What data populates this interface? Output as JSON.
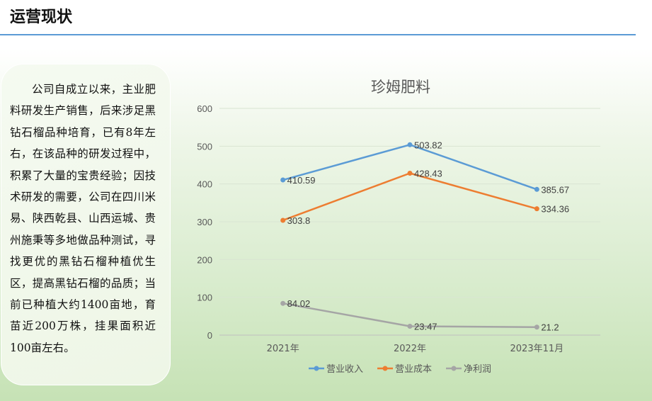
{
  "header": {
    "title": "运营现状"
  },
  "description": "公司自成立以来，主业肥料研发生产销售，后来涉足黑钻石榴品种培育，已有8年左右，在该品种的研发过程中，积累了大量的宝贵经验；因技术研发的需要，公司在四川米易、陕西乾县、山西运城、贵州施秉等多地做品种测试，寻找更优的黑钻石榴种植优生区，提高黑钻石榴的品质；当前已种植大约1400亩地，育苗近200万株，挂果面积近100亩左右。",
  "colors": {
    "accent_rule": "#5b9bd5",
    "series_1": "#5b9bd5",
    "series_2": "#ed7d31",
    "series_3": "#a5a5a5"
  },
  "chart_data": {
    "type": "line",
    "title": "珍姆肥料",
    "categories": [
      "2021年",
      "2022年",
      "2023年11月"
    ],
    "ylim": [
      0,
      600
    ],
    "yticks": [
      0,
      100,
      200,
      300,
      400,
      500,
      600
    ],
    "grid": true,
    "legend_position": "bottom",
    "series": [
      {
        "name": "营业收入",
        "values": [
          410.59,
          503.82,
          385.67
        ],
        "labels": [
          "410.59",
          "503.82",
          "385.67"
        ],
        "color": "#5b9bd5"
      },
      {
        "name": "营业成本",
        "values": [
          303.8,
          428.43,
          334.36
        ],
        "labels": [
          "303.8",
          "428.43",
          "334.36"
        ],
        "color": "#ed7d31"
      },
      {
        "name": "净利润",
        "values": [
          84.02,
          23.47,
          21.2
        ],
        "labels": [
          "84.02",
          "23.47",
          "21.2"
        ],
        "color": "#a5a5a5"
      }
    ]
  }
}
